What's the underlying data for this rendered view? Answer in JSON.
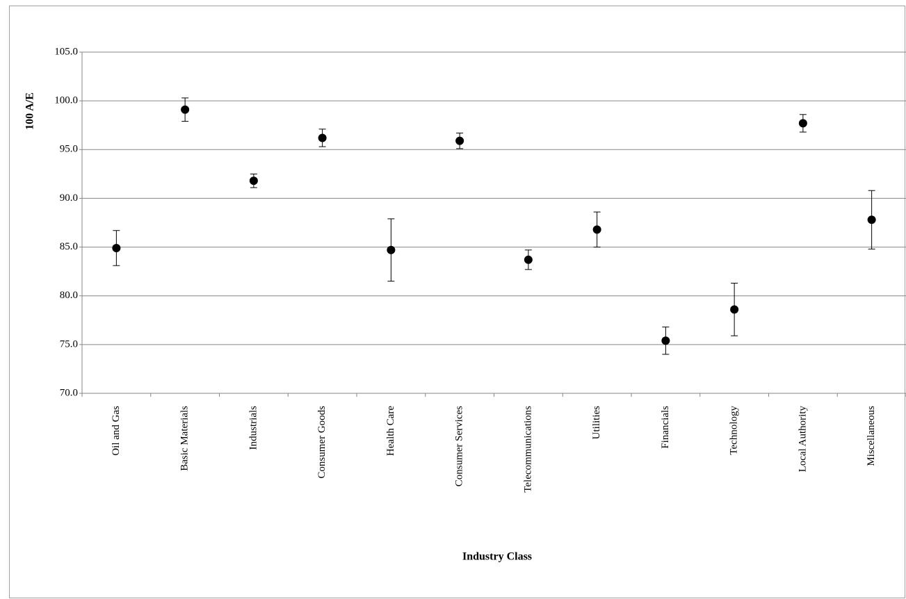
{
  "chart_data": {
    "type": "errorbar",
    "x_label": "Industry Class",
    "y_label": "100 A/E",
    "categories": [
      "Oil and Gas",
      "Basic Materials",
      "Industrials",
      "Consumer Goods",
      "Health Care",
      "Consumer Services",
      "Telecommunications",
      "Utilities",
      "Financials",
      "Technology",
      "Local Authority",
      "Miscellaneous"
    ],
    "values": [
      84.9,
      99.1,
      91.8,
      96.2,
      84.7,
      95.9,
      83.7,
      86.8,
      75.4,
      78.6,
      97.7,
      87.8
    ],
    "errors": [
      1.8,
      1.2,
      0.7,
      0.9,
      3.2,
      0.8,
      1.0,
      1.8,
      1.4,
      2.7,
      0.9,
      3.0
    ],
    "color": "#000000",
    "ylim": [
      70,
      105
    ],
    "yticks": [
      {
        "value": 70,
        "label": "70.0"
      },
      {
        "value": 75,
        "label": "75.0"
      },
      {
        "value": 80,
        "label": "80.0"
      },
      {
        "value": 85,
        "label": "85.0"
      },
      {
        "value": 90,
        "label": "90.0"
      },
      {
        "value": 95,
        "label": "95.0"
      },
      {
        "value": 100,
        "label": "100.0"
      },
      {
        "value": 105,
        "label": "105.0"
      }
    ],
    "grid": true
  }
}
